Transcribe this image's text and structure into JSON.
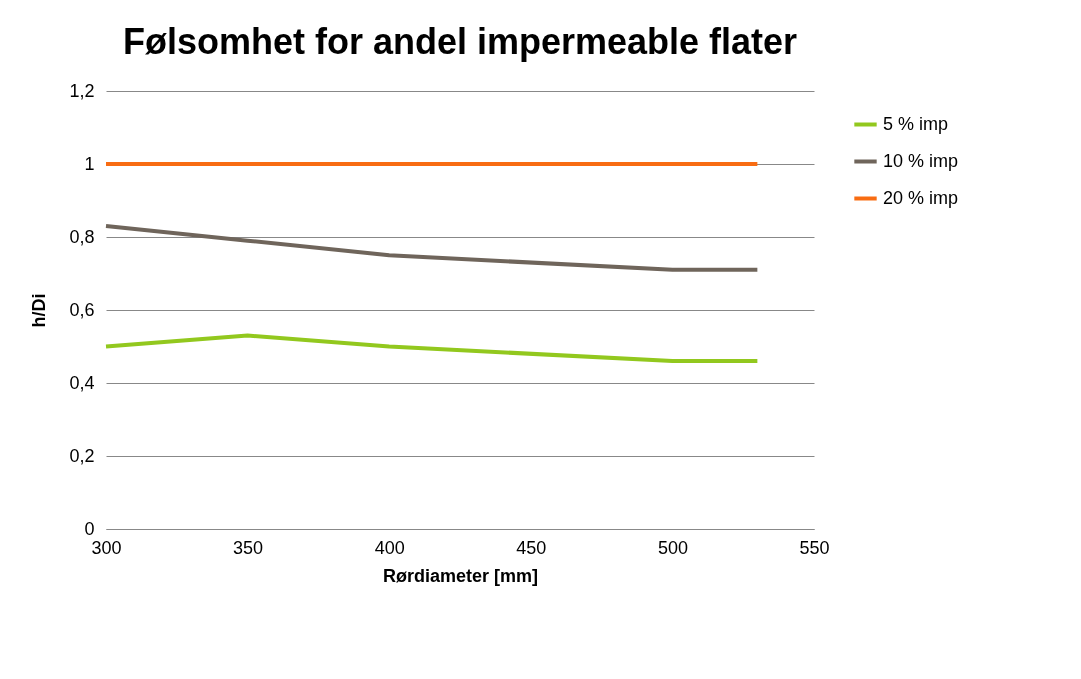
{
  "chart_data": {
    "type": "line",
    "title": "Følsomhet for andel impermeable flater",
    "xlabel": "Rørdiameter [mm]",
    "ylabel": "h/Di",
    "x": [
      300,
      350,
      400,
      500,
      530
    ],
    "series": [
      {
        "name": "5 % imp",
        "color": "#92c81e",
        "values": [
          0.5,
          0.53,
          0.5,
          0.46,
          0.46
        ]
      },
      {
        "name": "10 % imp",
        "color": "#6f655b",
        "values": [
          0.83,
          0.79,
          0.75,
          0.71,
          0.71
        ]
      },
      {
        "name": "20 % imp",
        "color": "#f86c12",
        "values": [
          1,
          1,
          1,
          1,
          1
        ]
      }
    ],
    "xlim": [
      300,
      550
    ],
    "xticks": [
      300,
      350,
      400,
      450,
      500,
      550
    ],
    "ylim": [
      0,
      1.2
    ],
    "yticks": [
      0,
      {
        "value": 0.2,
        "label": "0,2"
      },
      {
        "value": 0.4,
        "label": "0,4"
      },
      {
        "value": 0.6,
        "label": "0,6"
      },
      {
        "value": 0.8,
        "label": "0,8"
      },
      1,
      {
        "value": 1.2,
        "label": "1,2"
      }
    ],
    "grid": "y",
    "legend": "right",
    "marker": "none",
    "line_style": "solid"
  }
}
